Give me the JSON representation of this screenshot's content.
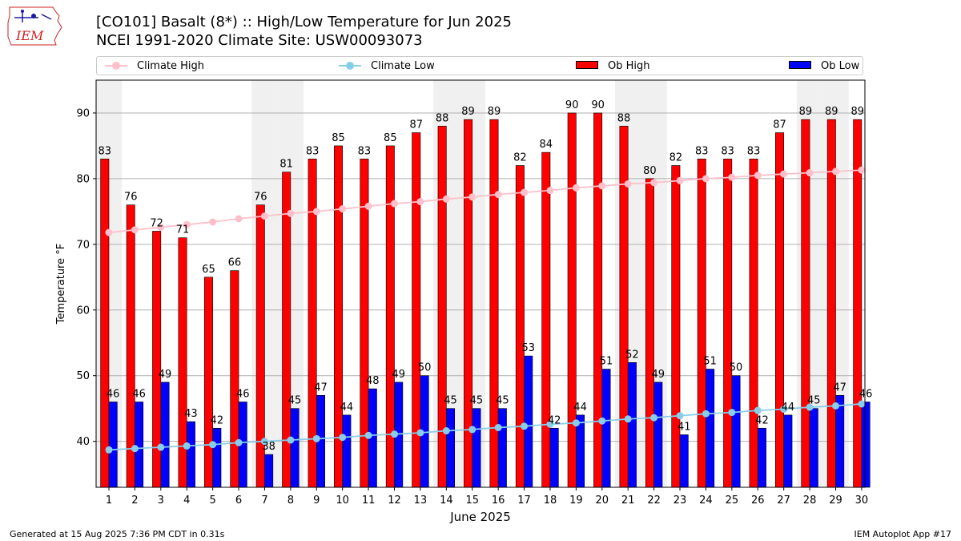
{
  "logo_text": "IEM",
  "title": "[CO101] Basalt (8*) :: High/Low Temperature for Jun 2025",
  "subtitle": "NCEI 1991-2020 Climate Site: USW00093073",
  "footer_left": "Generated at 15 Aug 2025 7:36 PM CDT in 0.31s",
  "footer_right": "IEM Autoplot App #17",
  "colors": {
    "ob_high": "#ff0000",
    "ob_low": "#0000ff",
    "climate_high": "#ffc0cb",
    "climate_low": "#87ceeb",
    "weekend_shade": "#f0f0f0",
    "grid": "#b0b0b0"
  },
  "chart_data": {
    "type": "bar",
    "xlabel": "June 2025",
    "ylabel": "Temperature °F",
    "ylim": [
      33,
      95
    ],
    "yticks": [
      40,
      50,
      60,
      70,
      80,
      90
    ],
    "grid": "horizontal",
    "legend_position": "top",
    "days": [
      1,
      2,
      3,
      4,
      5,
      6,
      7,
      8,
      9,
      10,
      11,
      12,
      13,
      14,
      15,
      16,
      17,
      18,
      19,
      20,
      21,
      22,
      23,
      24,
      25,
      26,
      27,
      28,
      29,
      30
    ],
    "shaded_days": [
      1,
      7,
      8,
      14,
      15,
      21,
      22,
      28,
      29
    ],
    "series": [
      {
        "name": "Climate High",
        "type": "line",
        "values": [
          71.8,
          72.2,
          72.6,
          73.0,
          73.4,
          73.9,
          74.3,
          74.7,
          75.0,
          75.4,
          75.8,
          76.2,
          76.5,
          76.9,
          77.2,
          77.6,
          77.9,
          78.2,
          78.6,
          78.9,
          79.2,
          79.4,
          79.7,
          80.0,
          80.2,
          80.5,
          80.7,
          80.9,
          81.1,
          81.3
        ]
      },
      {
        "name": "Climate Low",
        "type": "line",
        "values": [
          38.7,
          38.9,
          39.1,
          39.3,
          39.5,
          39.8,
          40.0,
          40.2,
          40.4,
          40.6,
          40.9,
          41.1,
          41.3,
          41.6,
          41.8,
          42.1,
          42.3,
          42.6,
          42.8,
          43.1,
          43.4,
          43.6,
          43.9,
          44.2,
          44.4,
          44.7,
          44.9,
          45.2,
          45.4,
          45.7
        ]
      },
      {
        "name": "Ob High",
        "type": "bar",
        "values": [
          83,
          76,
          72,
          71,
          65,
          66,
          76,
          81,
          83,
          85,
          83,
          85,
          87,
          88,
          89,
          89,
          82,
          84,
          90,
          90,
          88,
          80,
          82,
          83,
          83,
          83,
          87,
          89,
          89,
          89
        ]
      },
      {
        "name": "Ob Low",
        "type": "bar",
        "values": [
          46,
          46,
          49,
          43,
          42,
          46,
          38,
          45,
          47,
          44,
          48,
          49,
          50,
          45,
          45,
          45,
          53,
          42,
          44,
          51,
          52,
          49,
          41,
          51,
          50,
          42,
          44,
          45,
          47,
          46
        ]
      }
    ]
  }
}
